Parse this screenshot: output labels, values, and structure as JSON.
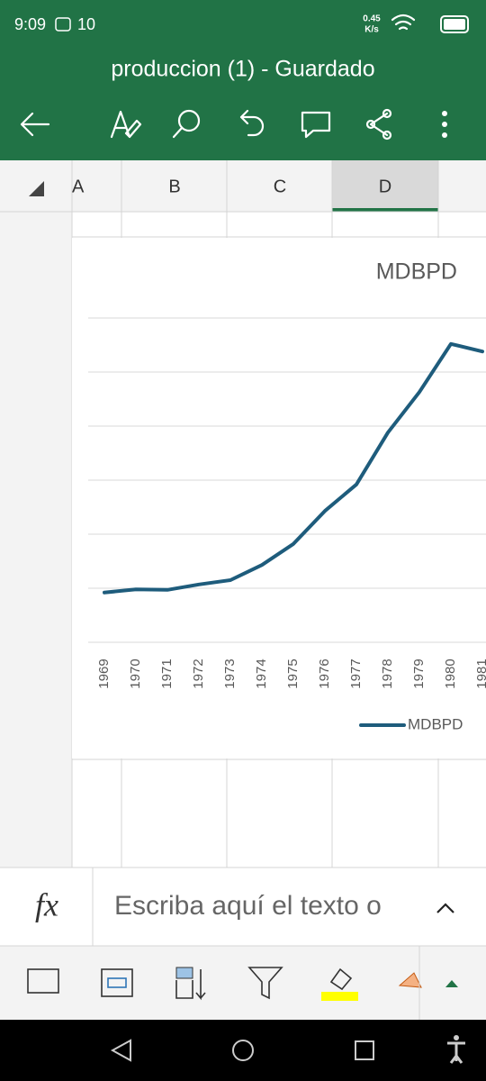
{
  "status_bar": {
    "time": "9:09",
    "notification_count": "10",
    "speed_value": "0.45",
    "speed_unit": "K/s"
  },
  "title_bar": {
    "title": "produccion (1) - Guardado"
  },
  "columns": [
    "A",
    "B",
    "C",
    "D"
  ],
  "chart_data": {
    "type": "line",
    "title": "MDBPD",
    "categories": [
      "1969",
      "1970",
      "1971",
      "1972",
      "1973",
      "1974",
      "1975",
      "1976",
      "1977",
      "1978",
      "1979",
      "1980",
      "1981"
    ],
    "series": [
      {
        "name": "MDBPD",
        "color": "#1e5c7c",
        "values": [
          0.92,
          0.98,
          0.97,
          1.07,
          1.15,
          1.43,
          1.82,
          2.43,
          2.92,
          3.88,
          4.63,
          5.52,
          5.38
        ]
      }
    ],
    "ylim": [
      0,
      6
    ],
    "yticks": [
      0,
      1,
      2,
      3,
      4,
      5,
      6
    ],
    "show_ytick_labels": false,
    "grid": true,
    "legend": "bottom-right"
  },
  "formula_bar": {
    "fx": "fx",
    "placeholder": "Escriba aquí el texto o"
  }
}
